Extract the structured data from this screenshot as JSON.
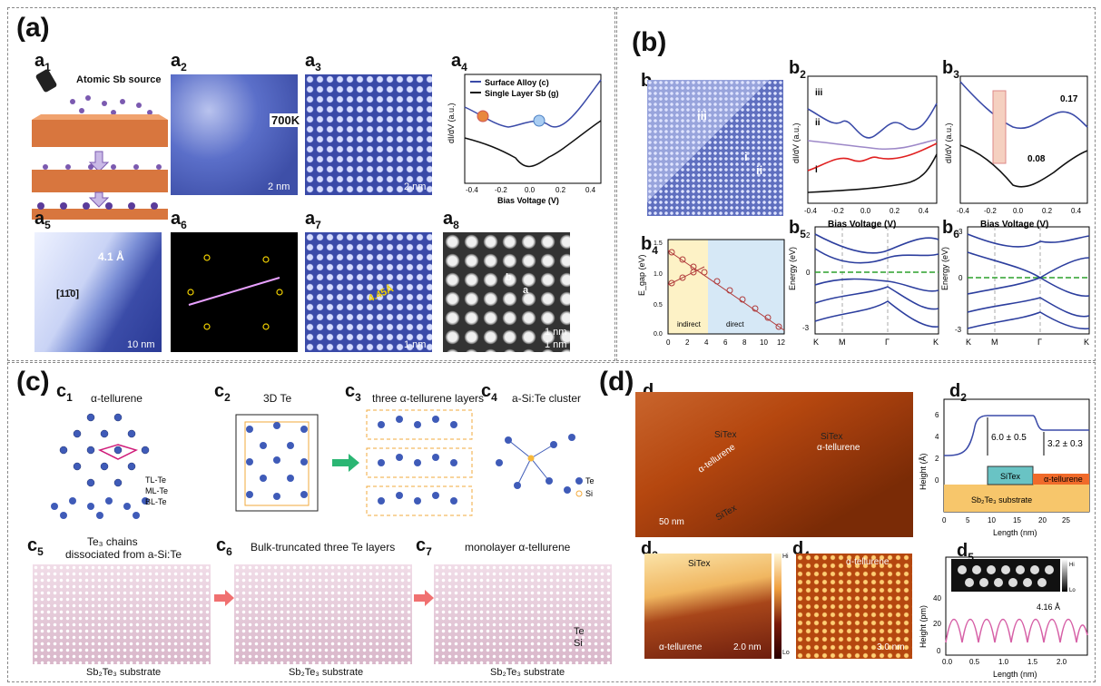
{
  "panels": {
    "a": {
      "label": "(a)"
    },
    "b": {
      "label": "(b)"
    },
    "c": {
      "label": "(c)"
    },
    "d": {
      "label": "(d)"
    }
  },
  "a": {
    "a1": {
      "label": "a",
      "sub": "1",
      "source": "Atomic Sb source"
    },
    "a2": {
      "label": "a",
      "sub": "2",
      "scale": "2 nm"
    },
    "a3": {
      "label": "a",
      "sub": "3",
      "scale": "2 nm",
      "arrow": "700K"
    },
    "a4": {
      "label": "a",
      "sub": "4",
      "ylabel": "dI/dV (a.u.)",
      "xlabel": "Bias Voltage (V)",
      "legend1": "Surface Alloy (c)",
      "legend2": "Single Layer Sb (g)",
      "ticks": [
        "-0.4",
        "-0.2",
        "0.0",
        "0.2",
        "0.4"
      ]
    },
    "a5": {
      "label": "a",
      "sub": "5",
      "height": "4.1 Å",
      "dir": "[11̄0]",
      "scale": "10 nm"
    },
    "a6": {
      "label": "a",
      "sub": "6"
    },
    "a7": {
      "label": "a",
      "sub": "7",
      "spacing": "4.45Å",
      "scale": "1 nm"
    },
    "a8": {
      "label": "a",
      "sub": "8",
      "b": "b",
      "a": "a",
      "scale1": "1 nm",
      "scale2": "1 nm"
    }
  },
  "b": {
    "b1": {
      "label": "b",
      "sub": "1",
      "r3": "iii",
      "r2": "ii",
      "r1": "i"
    },
    "b2": {
      "label": "b",
      "sub": "2",
      "ylabel": "dI/dV (a.u.)",
      "xlabel": "Bias Voltage (V)",
      "r3": "iii",
      "r2": "ii",
      "r1": "i",
      "ticks": [
        "-0.4",
        "-0.2",
        "0.0",
        "0.2",
        "0.4"
      ]
    },
    "b3": {
      "label": "b",
      "sub": "3",
      "ylabel": "dI/dV (a.u.)",
      "xlabel": "Bias Voltage (V)",
      "v1": "0.17",
      "v2": "0.08",
      "ticks": [
        "-0.4",
        "-0.2",
        "0.0",
        "0.2",
        "0.4"
      ]
    },
    "b4": {
      "label": "b",
      "sub": "4",
      "ylabel": "E_gap (eV)",
      "yticks": [
        "0.0",
        "0.1",
        "0.2",
        "0.3",
        "0.4",
        "0.5",
        "0.6",
        "0.7",
        "0.8",
        "0.9",
        "1.0",
        "1.1",
        "1.2",
        "1.3",
        "1.4",
        "1.5"
      ],
      "xticks": [
        "0",
        "2",
        "4",
        "6",
        "8",
        "10",
        "12"
      ],
      "indirect": "indirect",
      "direct": "direct"
    },
    "b5": {
      "label": "b",
      "sub": "5",
      "ylabel": "Energy (eV)",
      "yticks": [
        "2",
        "1",
        "0",
        "-1",
        "-2",
        "-3"
      ],
      "xticks": [
        "K",
        "M",
        "Γ",
        "K"
      ]
    },
    "b6": {
      "label": "b",
      "sub": "6",
      "ylabel": "Energy (eV)",
      "yticks": [
        "3",
        "2",
        "1",
        "0",
        "-1",
        "-2",
        "-3"
      ],
      "xticks": [
        "K",
        "M",
        "Γ",
        "K"
      ]
    }
  },
  "c": {
    "c1": {
      "label": "c",
      "sub": "1",
      "title": "α-tellurene",
      "tl": "TL-Te",
      "ml": "ML-Te",
      "bl": "BL-Te"
    },
    "c2": {
      "label": "c",
      "sub": "2",
      "title": "3D Te"
    },
    "c3": {
      "label": "c",
      "sub": "3",
      "title": "three α-tellurene layers"
    },
    "c4": {
      "label": "c",
      "sub": "4",
      "title": "a-Si:Te cluster",
      "te": "Te",
      "si": "Si"
    },
    "c5": {
      "label": "c",
      "sub": "5",
      "title1": "Te₃ chains",
      "title2": "dissociated from a-Si:Te",
      "substrate": "Sb₂Te₃ substrate"
    },
    "c6": {
      "label": "c",
      "sub": "6",
      "title": "Bulk-truncated three Te layers",
      "substrate": "Sb₂Te₃ substrate"
    },
    "c7": {
      "label": "c",
      "sub": "7",
      "title": "monolayer α-tellurene",
      "substrate": "Sb₂Te₃ substrate",
      "te": "Te",
      "si": "Si"
    }
  },
  "d": {
    "d1": {
      "label": "d",
      "sub": "1",
      "sitex1": "SiTex",
      "sitex2": "SiTex",
      "sitex3": "SiTex",
      "tell1": "α-tellurene",
      "tell2": "α-tellurene",
      "scale": "50 nm"
    },
    "d2": {
      "label": "d",
      "sub": "2",
      "ylabel": "Height (Å)",
      "xlabel": "Length (nm)",
      "h1": "6.0 ± 0.5",
      "h2": "3.2 ± 0.3",
      "sitex": "SiTex",
      "tell": "α-tellurene",
      "substrate": "Sb₂Te₃ substrate",
      "yticks": [
        "6",
        "4",
        "2",
        "0"
      ],
      "xticks": [
        "0",
        "5",
        "10",
        "15",
        "20",
        "25"
      ]
    },
    "d3": {
      "label": "d",
      "sub": "3",
      "sitex": "SiTex",
      "tell": "α-tellurene",
      "scale": "2.0 nm",
      "hi": "Hi",
      "lo": "Lo"
    },
    "d4": {
      "label": "d",
      "sub": "4",
      "tell": "α-tellurene",
      "scale": "3.0 nm"
    },
    "d5": {
      "label": "d",
      "sub": "5",
      "ylabel": "Height (pm)",
      "xlabel": "Length (nm)",
      "spacing": "4.16 Å",
      "yticks": [
        "40",
        "20",
        "0"
      ],
      "xticks": [
        "0.0",
        "0.5",
        "1.0",
        "1.5",
        "2.0"
      ],
      "hi": "Hi",
      "lo": "Lo"
    }
  }
}
